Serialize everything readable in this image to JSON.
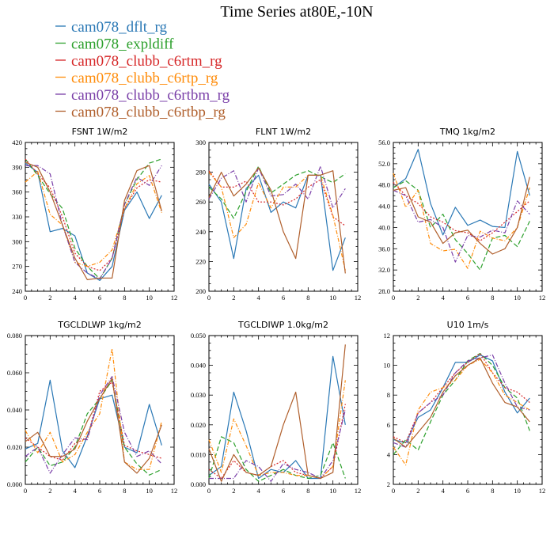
{
  "figure": {
    "title": "Time Series at80E,-10N"
  },
  "legend": [
    {
      "name": "cam078_dflt_rg",
      "color": "#2a78b5",
      "dash": "none"
    },
    {
      "name": "cam078_expldiff",
      "color": "#2ca02c",
      "dash": "6,3"
    },
    {
      "name": "cam078_clubb_c6rtm_rg",
      "color": "#d62728",
      "dash": "2,2"
    },
    {
      "name": "cam078_clubb_c6rtp_rg",
      "color": "#ff8c0a",
      "dash": "5,2,1,2"
    },
    {
      "name": "cam078_clubb_c6rtbm_rg",
      "color": "#7a3fa8",
      "dash": "6,2,1,2"
    },
    {
      "name": "cam078_clubb_c6rtbp_rg",
      "color": "#b05f2c",
      "dash": "none"
    }
  ],
  "chart_data": [
    {
      "type": "line",
      "title": "FSNT   1W/m2",
      "xlim": [
        0,
        12
      ],
      "xticks": [
        0,
        2,
        4,
        6,
        8,
        10,
        12
      ],
      "ylim": [
        240,
        420
      ],
      "yticks": [
        240,
        270,
        300,
        330,
        360,
        390,
        420
      ],
      "ytick_labels": [
        "240",
        "270",
        "300",
        "330",
        "360",
        "390",
        "420"
      ],
      "x": [
        0,
        1,
        2,
        3,
        4,
        5,
        6,
        7,
        8,
        9,
        10,
        11
      ],
      "series": [
        {
          "name": "cam078_dflt_rg",
          "values": [
            395,
            384,
            312,
            316,
            307,
            262,
            253,
            270,
            338,
            360,
            328,
            356
          ]
        },
        {
          "name": "cam078_expldiff",
          "values": [
            400,
            380,
            358,
            340,
            292,
            270,
            255,
            280,
            345,
            375,
            395,
            400
          ]
        },
        {
          "name": "cam078_clubb_c6rtm_rg",
          "values": [
            400,
            382,
            365,
            330,
            286,
            270,
            265,
            280,
            340,
            365,
            375,
            372
          ]
        },
        {
          "name": "cam078_clubb_c6rtp_rg",
          "values": [
            372,
            385,
            333,
            320,
            275,
            270,
            275,
            290,
            340,
            370,
            380,
            335
          ]
        },
        {
          "name": "cam078_clubb_c6rtbm_rg",
          "values": [
            392,
            392,
            382,
            320,
            275,
            262,
            255,
            280,
            345,
            378,
            368,
            392
          ]
        },
        {
          "name": "cam078_clubb_c6rtbp_rg",
          "values": [
            396,
            390,
            360,
            320,
            280,
            254,
            256,
            256,
            350,
            386,
            392,
            337
          ]
        }
      ]
    },
    {
      "type": "line",
      "title": "FLNT   1W/m2",
      "xlim": [
        0,
        12
      ],
      "xticks": [
        0,
        2,
        4,
        6,
        8,
        10,
        12
      ],
      "ylim": [
        200,
        300
      ],
      "yticks": [
        200,
        220,
        240,
        260,
        280,
        300
      ],
      "ytick_labels": [
        "200",
        "220",
        "240",
        "260",
        "280",
        "300"
      ],
      "x": [
        0,
        1,
        2,
        3,
        4,
        5,
        6,
        7,
        8,
        9,
        10,
        11
      ],
      "series": [
        {
          "name": "cam078_dflt_rg",
          "values": [
            272,
            260,
            222,
            269,
            278,
            253,
            260,
            256,
            278,
            278,
            214,
            236
          ]
        },
        {
          "name": "cam078_expldiff",
          "values": [
            270,
            262,
            249,
            267,
            284,
            266,
            272,
            278,
            281,
            277,
            273,
            279
          ]
        },
        {
          "name": "cam078_clubb_c6rtm_rg",
          "values": [
            281,
            270,
            270,
            274,
            260,
            260,
            258,
            262,
            270,
            275,
            250,
            244
          ]
        },
        {
          "name": "cam078_clubb_c6rtp_rg",
          "values": [
            280,
            270,
            236,
            245,
            273,
            256,
            270,
            270,
            278,
            278,
            251,
            214
          ]
        },
        {
          "name": "cam078_clubb_c6rtbm_rg",
          "values": [
            262,
            276,
            281,
            260,
            283,
            264,
            265,
            272,
            262,
            284,
            256,
            269
          ]
        },
        {
          "name": "cam078_clubb_c6rtbp_rg",
          "values": [
            263,
            280,
            264,
            272,
            283,
            268,
            240,
            222,
            278,
            278,
            281,
            212
          ]
        }
      ]
    },
    {
      "type": "line",
      "title": "TMQ   1kg/m2",
      "xlim": [
        0,
        12
      ],
      "xticks": [
        0,
        2,
        4,
        6,
        8,
        10,
        12
      ],
      "ylim": [
        28,
        56
      ],
      "yticks": [
        28,
        32,
        36,
        40,
        44,
        48,
        52,
        56
      ],
      "ytick_labels": [
        "28.0",
        "32.0",
        "36.0",
        "40.0",
        "44.0",
        "48.0",
        "52.0",
        "56.0"
      ],
      "x": [
        0,
        1,
        2,
        3,
        4,
        5,
        6,
        7,
        8,
        9,
        10,
        11
      ],
      "series": [
        {
          "name": "cam078_dflt_rg",
          "values": [
            47.5,
            49.2,
            54.7,
            44.5,
            38.6,
            43.8,
            40.4,
            41.4,
            40.2,
            40.0,
            54.3,
            46.0
          ]
        },
        {
          "name": "cam078_expldiff",
          "values": [
            47.5,
            48.8,
            47.0,
            40.0,
            42.5,
            37.7,
            35.1,
            32.0,
            38.0,
            38.5,
            36.4,
            41.2
          ]
        },
        {
          "name": "cam078_clubb_c6rtm_rg",
          "values": [
            48.5,
            46.0,
            44.5,
            42.0,
            41.0,
            39.4,
            39.0,
            37.5,
            39.0,
            41.0,
            43.0,
            45.0
          ]
        },
        {
          "name": "cam078_clubb_c6rtp_rg",
          "values": [
            50.2,
            43.8,
            47.0,
            37.0,
            35.6,
            35.9,
            32.3,
            39.3,
            38.0,
            37.5,
            40.0,
            47.5
          ]
        },
        {
          "name": "cam078_clubb_c6rtbm_rg",
          "values": [
            47.0,
            46.0,
            41.0,
            41.5,
            40.0,
            33.5,
            38.5,
            38.2,
            39.5,
            39.0,
            45.0,
            42.5
          ]
        },
        {
          "name": "cam078_clubb_c6rtbp_rg",
          "values": [
            47.0,
            47.5,
            42.0,
            41.0,
            37.0,
            39.0,
            39.5,
            37.0,
            35.0,
            36.0,
            40.0,
            49.5
          ]
        }
      ]
    },
    {
      "type": "line",
      "title": "TGCLDLWP   1kg/m2",
      "xlim": [
        0,
        12
      ],
      "xticks": [
        0,
        2,
        4,
        6,
        8,
        10,
        12
      ],
      "ylim": [
        0,
        0.08
      ],
      "yticks": [
        0,
        0.02,
        0.04,
        0.06,
        0.08
      ],
      "ytick_labels": [
        "0.000",
        "0.020",
        "0.040",
        "0.060",
        "0.080"
      ],
      "x": [
        0,
        1,
        2,
        3,
        4,
        5,
        6,
        7,
        8,
        9,
        10,
        11
      ],
      "series": [
        {
          "name": "cam078_dflt_rg",
          "values": [
            0.019,
            0.022,
            0.056,
            0.018,
            0.009,
            0.026,
            0.046,
            0.048,
            0.02,
            0.017,
            0.043,
            0.021
          ]
        },
        {
          "name": "cam078_expldiff",
          "values": [
            0.012,
            0.02,
            0.01,
            0.012,
            0.02,
            0.038,
            0.046,
            0.056,
            0.02,
            0.011,
            0.005,
            0.008
          ]
        },
        {
          "name": "cam078_clubb_c6rtm_rg",
          "values": [
            0.025,
            0.02,
            0.015,
            0.013,
            0.022,
            0.025,
            0.05,
            0.055,
            0.021,
            0.018,
            0.016,
            0.014
          ]
        },
        {
          "name": "cam078_clubb_c6rtp_rg",
          "values": [
            0.029,
            0.017,
            0.028,
            0.012,
            0.016,
            0.028,
            0.038,
            0.073,
            0.012,
            0.008,
            0.008,
            0.034
          ]
        },
        {
          "name": "cam078_clubb_c6rtbm_rg",
          "values": [
            0.015,
            0.02,
            0.006,
            0.016,
            0.025,
            0.024,
            0.048,
            0.058,
            0.028,
            0.015,
            0.018,
            0.011
          ]
        },
        {
          "name": "cam078_clubb_c6rtbp_rg",
          "values": [
            0.023,
            0.028,
            0.015,
            0.015,
            0.019,
            0.034,
            0.046,
            0.057,
            0.012,
            0.006,
            0.014,
            0.032
          ]
        }
      ]
    },
    {
      "type": "line",
      "title": "TGCLDIWP   1.0kg/m2",
      "xlim": [
        0,
        12
      ],
      "xticks": [
        0,
        2,
        4,
        6,
        8,
        10,
        12
      ],
      "ylim": [
        0,
        0.05
      ],
      "yticks": [
        0,
        0.01,
        0.02,
        0.03,
        0.04,
        0.05
      ],
      "ytick_labels": [
        "0.000",
        "0.010",
        "0.020",
        "0.030",
        "0.040",
        "0.050"
      ],
      "x": [
        0,
        1,
        2,
        3,
        4,
        5,
        6,
        7,
        8,
        9,
        10,
        11
      ],
      "series": [
        {
          "name": "cam078_dflt_rg",
          "values": [
            0.003,
            0.006,
            0.031,
            0.018,
            0.002,
            0.005,
            0.004,
            0.008,
            0.002,
            0.002,
            0.043,
            0.02
          ]
        },
        {
          "name": "cam078_expldiff",
          "values": [
            0.002,
            0.016,
            0.014,
            0.005,
            0.001,
            0.003,
            0.005,
            0.003,
            0.002,
            0.003,
            0.014,
            0.002
          ]
        },
        {
          "name": "cam078_clubb_c6rtm_rg",
          "values": [
            0.005,
            0.002,
            0.008,
            0.004,
            0.003,
            0.006,
            0.008,
            0.004,
            0.003,
            0.002,
            0.006,
            0.027
          ]
        },
        {
          "name": "cam078_clubb_c6rtp_rg",
          "values": [
            0.015,
            0.004,
            0.022,
            0.013,
            0.003,
            0.004,
            0.004,
            0.003,
            0.003,
            0.002,
            0.006,
            0.035
          ]
        },
        {
          "name": "cam078_clubb_c6rtbm_rg",
          "values": [
            0.002,
            0.002,
            0.002,
            0.008,
            0.006,
            0.001,
            0.007,
            0.005,
            0.004,
            0.002,
            0.008,
            0.025
          ]
        },
        {
          "name": "cam078_clubb_c6rtbp_rg",
          "values": [
            0.012,
            0.001,
            0.01,
            0.004,
            0.003,
            0.006,
            0.02,
            0.031,
            0.003,
            0.002,
            0.004,
            0.047
          ]
        }
      ]
    },
    {
      "type": "line",
      "title": "U10   1m/s",
      "xlim": [
        0,
        12
      ],
      "xticks": [
        0,
        2,
        4,
        6,
        8,
        10,
        12
      ],
      "ylim": [
        2,
        12
      ],
      "yticks": [
        2,
        4,
        6,
        8,
        10,
        12
      ],
      "ytick_labels": [
        "2",
        "4",
        "6",
        "8",
        "10",
        "12"
      ],
      "x": [
        0,
        1,
        2,
        3,
        4,
        5,
        6,
        7,
        8,
        9,
        10,
        11
      ],
      "series": [
        {
          "name": "cam078_dflt_rg",
          "values": [
            5.0,
            4.8,
            6.5,
            7.0,
            8.5,
            10.2,
            10.2,
            10.7,
            10.3,
            8.2,
            6.8,
            7.8
          ]
        },
        {
          "name": "cam078_expldiff",
          "values": [
            4.0,
            5.0,
            4.3,
            6.2,
            8.0,
            9.0,
            10.3,
            10.8,
            10.0,
            8.5,
            7.8,
            5.6
          ]
        },
        {
          "name": "cam078_clubb_c6rtm_rg",
          "values": [
            5.2,
            4.8,
            6.8,
            7.5,
            8.5,
            9.5,
            10.2,
            10.8,
            9.5,
            8.5,
            8.2,
            7.5
          ]
        },
        {
          "name": "cam078_clubb_c6rtp_rg",
          "values": [
            4.5,
            3.3,
            7.0,
            8.2,
            8.5,
            9.0,
            10.0,
            10.4,
            9.5,
            8.0,
            7.5,
            7.0
          ]
        },
        {
          "name": "cam078_clubb_c6rtbm_rg",
          "values": [
            4.8,
            4.5,
            6.8,
            7.5,
            8.0,
            9.5,
            10.3,
            10.5,
            10.7,
            8.8,
            7.2,
            7.0
          ]
        },
        {
          "name": "cam078_clubb_c6rtbp_rg",
          "values": [
            5.1,
            4.5,
            5.5,
            6.5,
            8.2,
            9.3,
            10.0,
            10.5,
            8.8,
            7.5,
            7.2,
            6.2
          ]
        }
      ]
    }
  ]
}
